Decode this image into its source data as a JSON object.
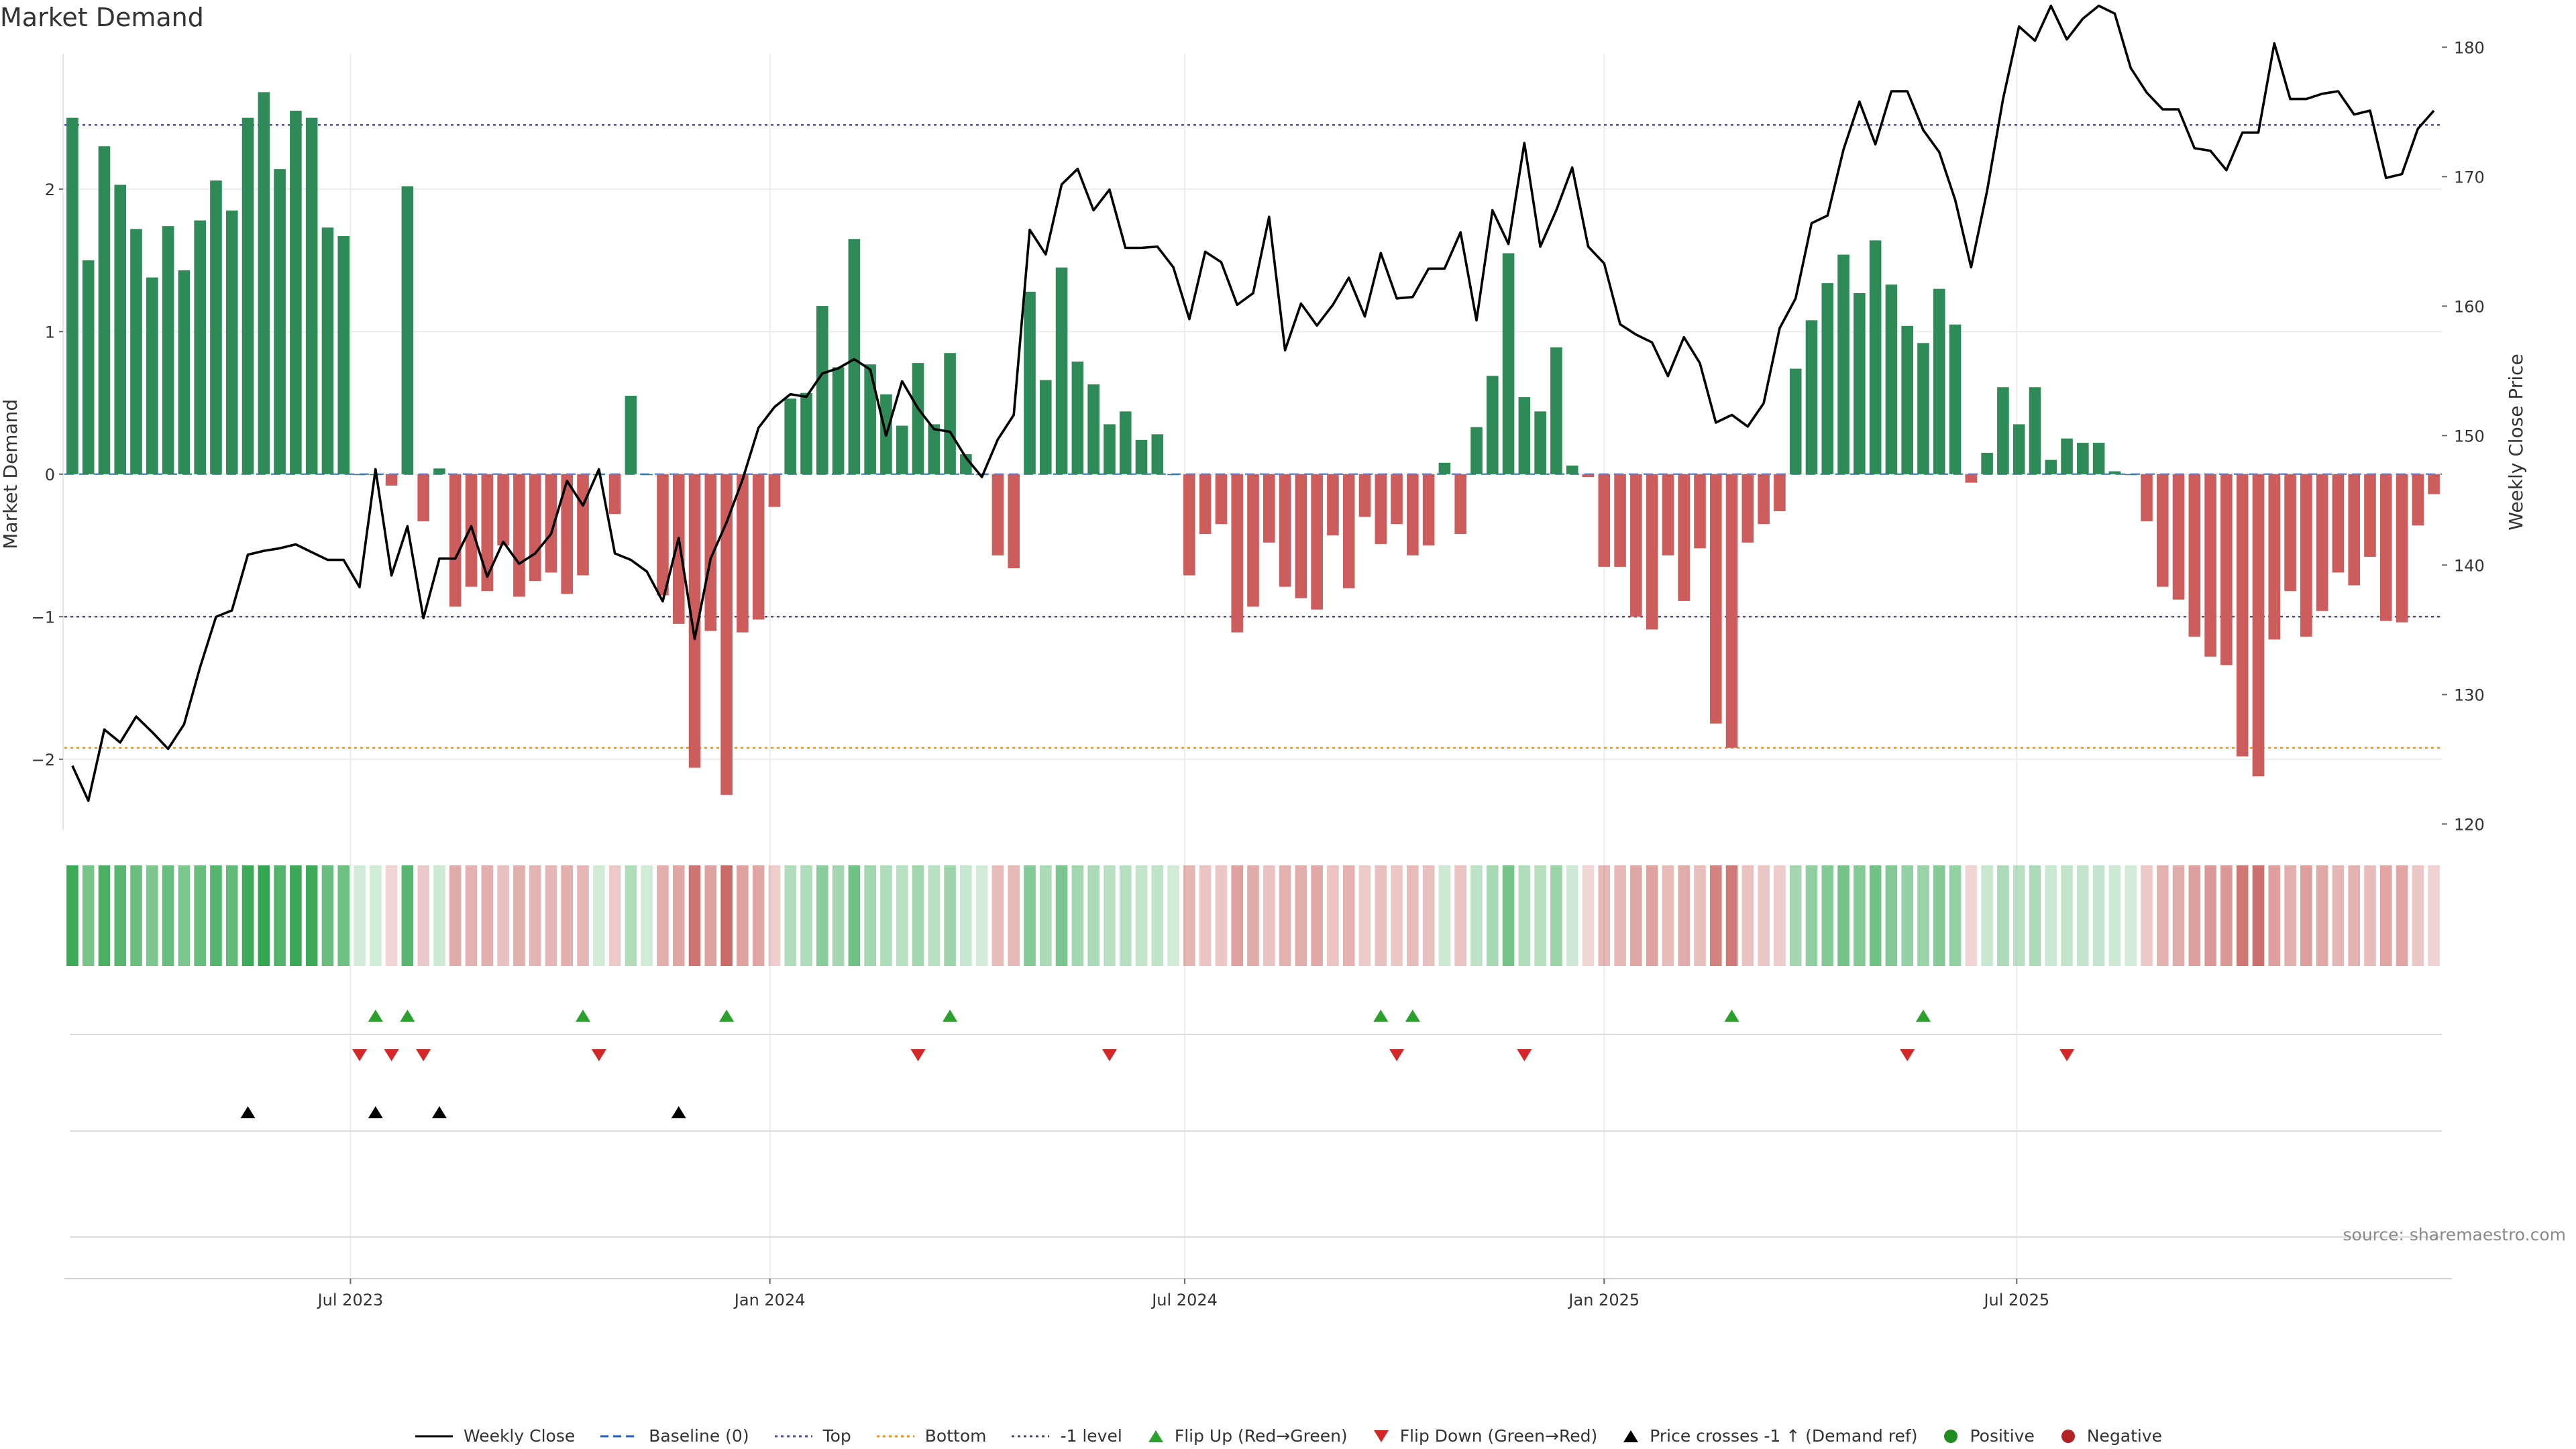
{
  "title": "Market Demand",
  "source": "source: sharemaestro.com",
  "colors": {
    "positive_bar": "#2e8b57",
    "negative_bar": "#cd5c5c",
    "price_line": "#000000",
    "top_line": "#4a4aa8",
    "bottom_line": "#ff8c00",
    "minus1_line": "#444466",
    "flip_up": "#2ca02c",
    "flip_down": "#d62728",
    "cross_marker": "#000000",
    "positive_dot": "#228b22",
    "negative_dot": "#b22222"
  },
  "chart_data": {
    "type": "bar",
    "title": "Market Demand",
    "ylabel": "Market Demand",
    "y2label": "Weekly Close Price",
    "ylim": [
      -2.5,
      2.95
    ],
    "y2lim": [
      119.5,
      179.5
    ],
    "yticks": [
      -2,
      -1,
      0,
      1,
      2
    ],
    "y2ticks": [
      120,
      130,
      140,
      150,
      160,
      170,
      180
    ],
    "reference_lines": {
      "top": 2.45,
      "bottom": -1.92,
      "minus1": -1.0,
      "baseline": 0
    },
    "x_start": "2023-03-01",
    "week_step_days": 7,
    "x_ticks": [
      {
        "label": "Jul 2023",
        "date": "2023-07-01"
      },
      {
        "label": "Jan 2024",
        "date": "2024-01-01"
      },
      {
        "label": "Jul 2024",
        "date": "2024-07-01"
      },
      {
        "label": "Jan 2025",
        "date": "2025-01-01"
      },
      {
        "label": "Jul 2025",
        "date": "2025-07-01"
      }
    ],
    "series": [
      {
        "name": "Market Demand",
        "values": [
          2.5,
          1.5,
          2.3,
          2.03,
          1.72,
          1.38,
          1.74,
          1.43,
          1.78,
          2.06,
          1.85,
          2.5,
          2.68,
          2.14,
          2.55,
          2.5,
          1.73,
          1.67,
          0,
          0,
          -0.08,
          2.02,
          -0.33,
          0.04,
          -0.93,
          -0.79,
          -0.82,
          -0.5,
          -0.86,
          -0.75,
          -0.69,
          -0.84,
          -0.71,
          0,
          -0.28,
          0.55,
          0,
          -0.85,
          -1.05,
          -2.06,
          -1.1,
          -2.25,
          -1.11,
          -1.02,
          -0.23,
          0.53,
          0.57,
          1.18,
          0.75,
          1.65,
          0.77,
          0.56,
          0.34,
          0.78,
          0.35,
          0.85,
          0.14,
          0,
          -0.57,
          -0.66,
          1.28,
          0.66,
          1.45,
          0.79,
          0.63,
          0.35,
          0.44,
          0.24,
          0.28,
          0,
          -0.71,
          -0.42,
          -0.35,
          -1.11,
          -0.93,
          -0.48,
          -0.79,
          -0.87,
          -0.95,
          -0.43,
          -0.8,
          -0.3,
          -0.49,
          -0.35,
          -0.57,
          -0.5,
          0.08,
          -0.42,
          0.33,
          0.69,
          1.55,
          0.54,
          0.44,
          0.89,
          0.06,
          -0.02,
          -0.65,
          -0.65,
          -1.0,
          -1.09,
          -0.57,
          -0.89,
          -0.52,
          -1.75,
          -1.92,
          -0.48,
          -0.35,
          -0.26,
          0.74,
          1.08,
          1.34,
          1.54,
          1.27,
          1.64,
          1.33,
          1.04,
          0.92,
          1.3,
          1.05,
          -0.06,
          0.15,
          0.61,
          0.35,
          0.61,
          0.1,
          0.25,
          0.22,
          0.22,
          0.02,
          0,
          -0.33,
          -0.79,
          -0.88,
          -1.14,
          -1.28,
          -1.34,
          -1.98,
          -2.12,
          -1.16,
          -0.82,
          -1.14,
          -0.96,
          -0.69,
          -0.78,
          -0.58,
          -1.03,
          -1.04,
          -0.36,
          -0.14
        ]
      },
      {
        "name": "Weekly Close",
        "axis": "right",
        "values": [
          124.5,
          121.8,
          127.3,
          126.3,
          128.3,
          127.1,
          125.8,
          127.7,
          132.1,
          136,
          136.5,
          140.8,
          141.1,
          141.3,
          141.6,
          141,
          140.4,
          140.4,
          138.3,
          147.4,
          139.2,
          143,
          135.9,
          140.5,
          140.5,
          143,
          139.1,
          141.8,
          140.1,
          140.9,
          142.4,
          146.5,
          144.6,
          147.4,
          140.9,
          140.4,
          139.5,
          137.2,
          142.1,
          134.3,
          140.5,
          143.3,
          146.6,
          150.6,
          152.2,
          153.2,
          153,
          154.8,
          155.2,
          155.9,
          155.1,
          150,
          154.2,
          152.1,
          150.5,
          150.3,
          148.3,
          146.8,
          149.7,
          151.6,
          165.9,
          164,
          169.4,
          170.6,
          167.4,
          169,
          164.5,
          164.5,
          164.6,
          163,
          159,
          164.2,
          163.4,
          160.1,
          161,
          166.9,
          156.6,
          160.2,
          158.5,
          160.1,
          162.2,
          159.2,
          164.1,
          160.6,
          160.7,
          162.9,
          162.9,
          165.7,
          158.9,
          167.4,
          164.8,
          172.6,
          164.6,
          167.4,
          170.7,
          164.6,
          163.3,
          158.6,
          157.8,
          157.2,
          154.6,
          157.6,
          155.6,
          151,
          151.6,
          150.7,
          152.5,
          158.3,
          160.6,
          166.4,
          167,
          172.1,
          175.8,
          172.5,
          176.6,
          176.6,
          173.6,
          171.9,
          168.2,
          163,
          168.9,
          176,
          181.6,
          180.5,
          183.2,
          180.6,
          182.2,
          183.2,
          182.6,
          178.4,
          176.5,
          175.2,
          175.2,
          172.2,
          172,
          170.5,
          173.4,
          173.4,
          180.3,
          176,
          176,
          176.4,
          176.6,
          174.8,
          175.1,
          169.9,
          170.2,
          173.7,
          175.1
        ]
      }
    ],
    "flip_up_weeks": [
      19,
      21,
      32,
      41,
      55,
      82,
      84,
      104,
      116
    ],
    "flip_down_weeks": [
      18,
      20,
      22,
      33,
      53,
      65,
      83,
      91,
      115,
      125
    ],
    "price_cross_weeks": [
      11,
      19,
      23,
      38
    ]
  },
  "legend": [
    {
      "label": "Weekly Close",
      "symbol": "line-solid",
      "color": "#000000"
    },
    {
      "label": "Baseline (0)",
      "symbol": "line-dashed",
      "color": "#1f5fbf"
    },
    {
      "label": "Top",
      "symbol": "line-dotted",
      "color": "#4a4aa8"
    },
    {
      "label": "Bottom",
      "symbol": "line-dotted",
      "color": "#ff8c00"
    },
    {
      "label": "-1 level",
      "symbol": "line-dotted",
      "color": "#444466"
    },
    {
      "label": "Flip Up (Red→Green)",
      "symbol": "triangle-up",
      "color": "#2ca02c"
    },
    {
      "label": "Flip Down (Green→Red)",
      "symbol": "triangle-down",
      "color": "#d62728"
    },
    {
      "label": "Price crosses -1 ↑ (Demand ref)",
      "symbol": "triangle-up",
      "color": "#000000"
    },
    {
      "label": "Positive",
      "symbol": "dot",
      "color": "#228b22"
    },
    {
      "label": "Negative",
      "symbol": "dot",
      "color": "#b22222"
    }
  ]
}
